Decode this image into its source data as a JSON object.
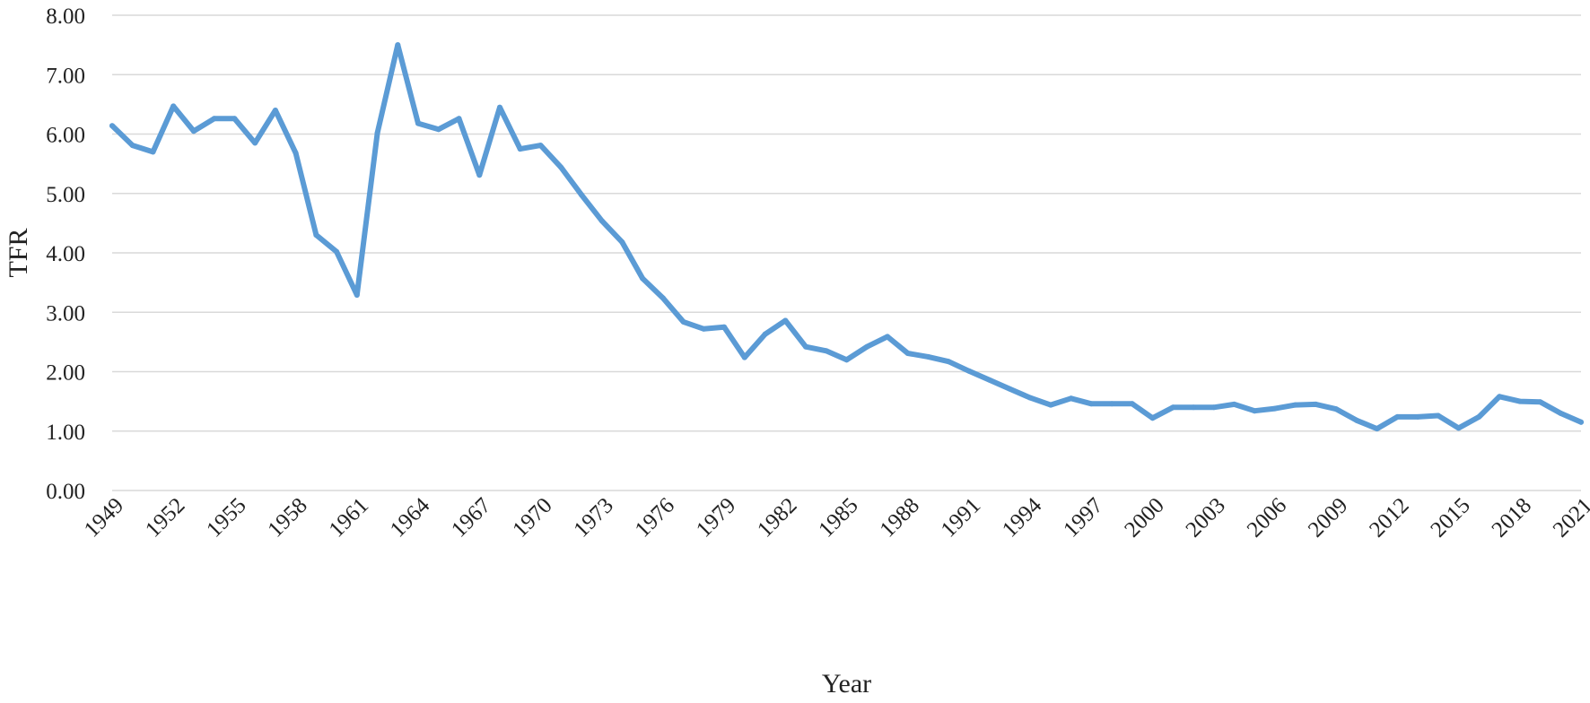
{
  "chart_data": {
    "type": "line",
    "title": "",
    "xlabel": "Year",
    "ylabel": "TFR",
    "ylim": [
      0,
      8
    ],
    "yticks": [
      "0.00",
      "1.00",
      "2.00",
      "3.00",
      "4.00",
      "5.00",
      "6.00",
      "7.00",
      "8.00"
    ],
    "xlim": [
      1949,
      2021
    ],
    "xticks": [
      "1949",
      "1952",
      "1955",
      "1958",
      "1961",
      "1964",
      "1967",
      "1970",
      "1973",
      "1976",
      "1979",
      "1982",
      "1985",
      "1988",
      "1991",
      "1994",
      "1997",
      "2000",
      "2003",
      "2006",
      "2009",
      "2012",
      "2015",
      "2018",
      "2021"
    ],
    "grid": true,
    "legend": "none",
    "line_color": "#5b9bd5",
    "series": [
      {
        "x": [
          1949,
          1950,
          1951,
          1952,
          1953,
          1954,
          1955,
          1956,
          1957,
          1958,
          1959,
          1960,
          1961,
          1962,
          1963,
          1964,
          1965,
          1966,
          1967,
          1968,
          1969,
          1970,
          1971,
          1972,
          1973,
          1974,
          1975,
          1976,
          1977,
          1978,
          1979,
          1980,
          1981,
          1982,
          1983,
          1984,
          1985,
          1986,
          1987,
          1988,
          1989,
          1990,
          1991,
          1992,
          1993,
          1994,
          1995,
          1996,
          1997,
          1998,
          1999,
          2000,
          2001,
          2002,
          2003,
          2004,
          2005,
          2006,
          2007,
          2008,
          2009,
          2010,
          2011,
          2012,
          2013,
          2014,
          2015,
          2016,
          2017,
          2018,
          2019,
          2020,
          2021
        ],
        "y": [
          6.14,
          5.81,
          5.7,
          6.47,
          6.05,
          6.26,
          6.26,
          5.85,
          6.4,
          5.68,
          4.3,
          4.02,
          3.29,
          6.02,
          7.5,
          6.18,
          6.08,
          6.26,
          5.31,
          6.45,
          5.75,
          5.81,
          5.44,
          4.98,
          4.54,
          4.18,
          3.57,
          3.24,
          2.84,
          2.72,
          2.75,
          2.24,
          2.63,
          2.86,
          2.42,
          2.35,
          2.2,
          2.42,
          2.59,
          2.31,
          2.25,
          2.17,
          2.01,
          1.86,
          1.71,
          1.56,
          1.44,
          1.55,
          1.46,
          1.46,
          1.46,
          1.22,
          1.4,
          1.4,
          1.4,
          1.45,
          1.34,
          1.38,
          1.44,
          1.45,
          1.37,
          1.18,
          1.04,
          1.24,
          1.24,
          1.26,
          1.05,
          1.24,
          1.58,
          1.5,
          1.49,
          1.3,
          1.15
        ]
      }
    ]
  }
}
